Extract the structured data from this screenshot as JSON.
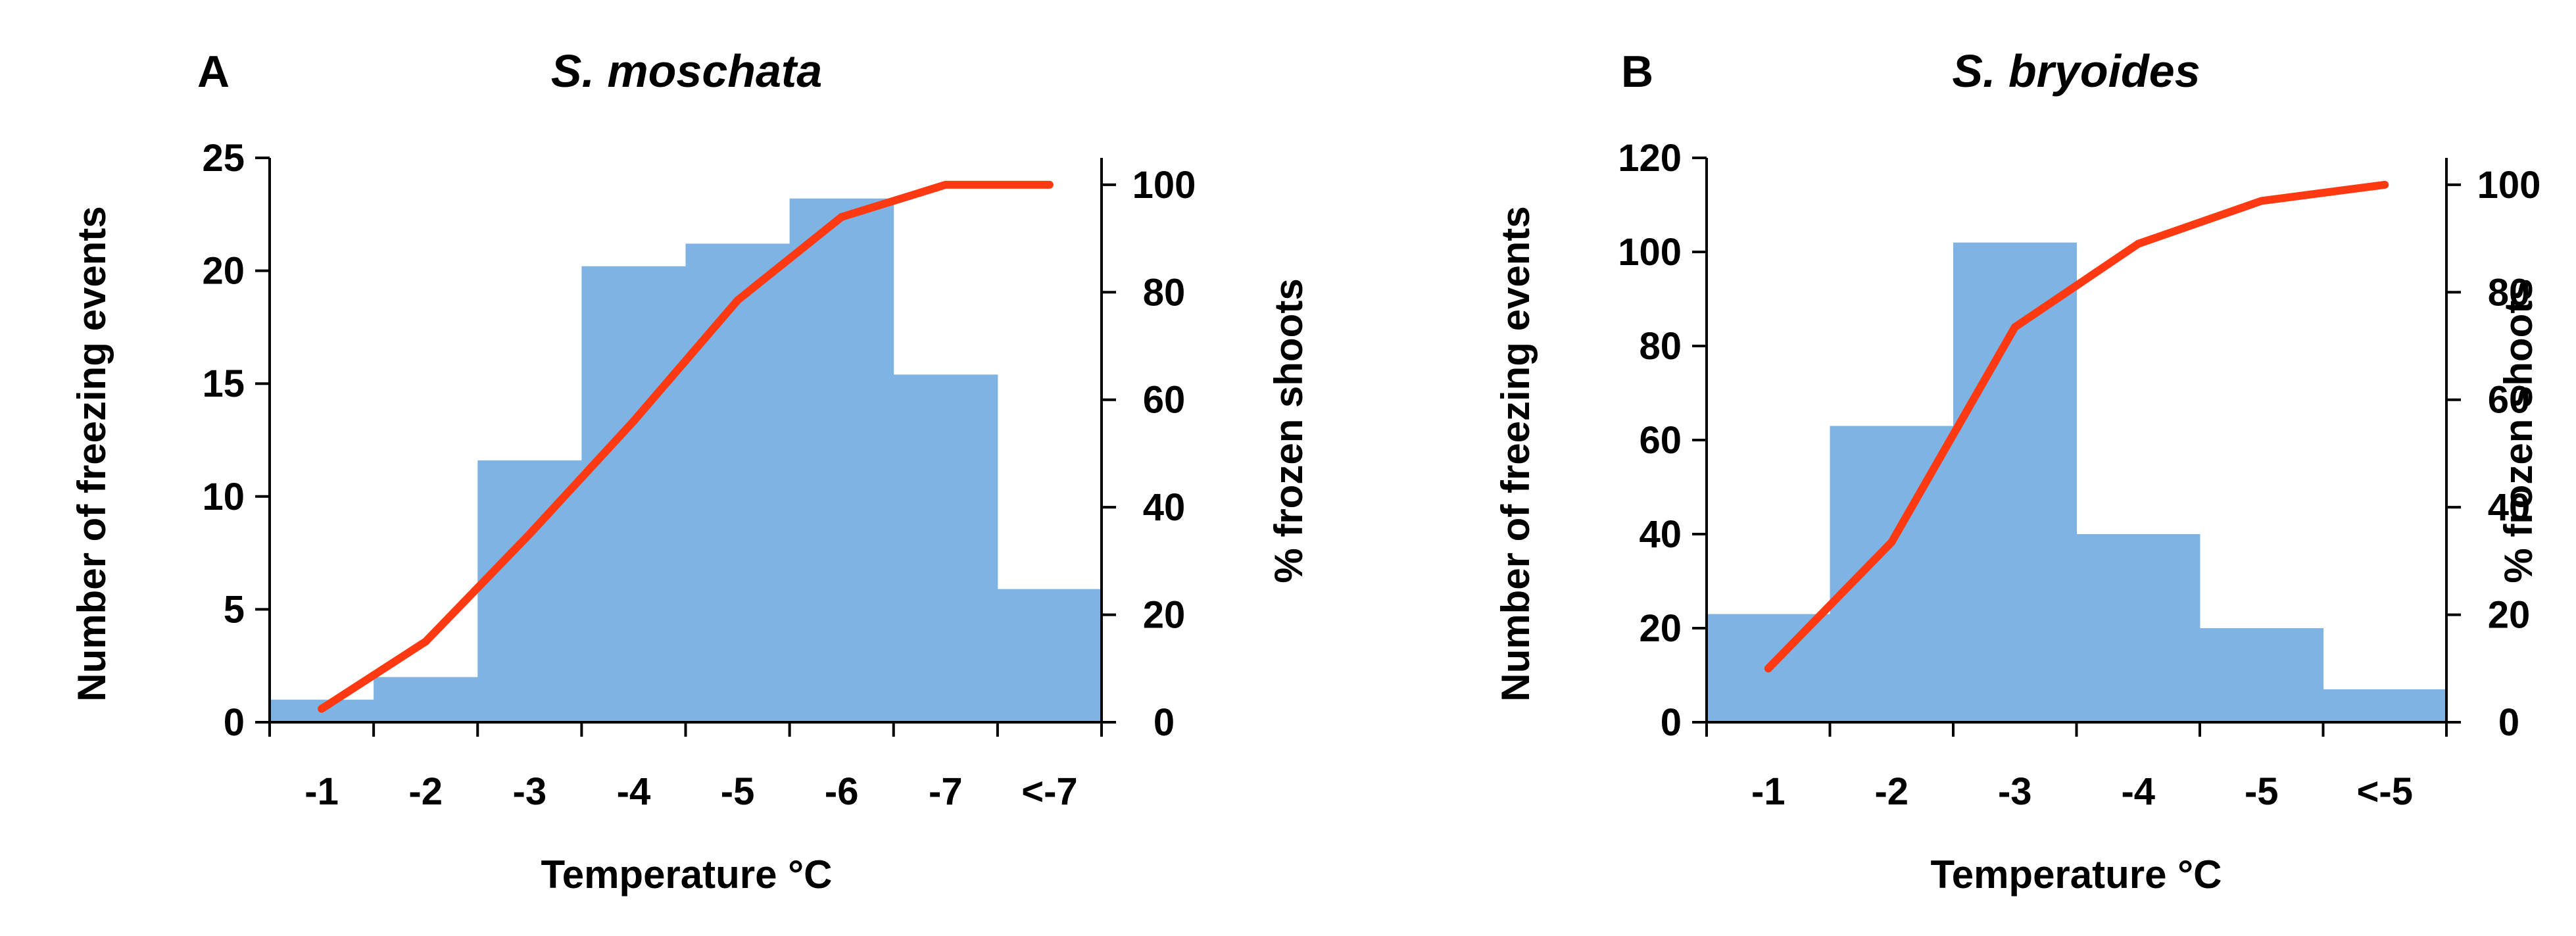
{
  "colors": {
    "bar": "#7EB3E3",
    "line": "#FF3A12",
    "axis": "#000000"
  },
  "chart_data": [
    {
      "type": "bar",
      "panel_letter": "A",
      "title": "S. moschata",
      "xlabel": "Temperature °C",
      "ylabel": "Number of freezing events",
      "ylabel_right": "% frozen shoots",
      "categories": [
        "-1",
        "-2",
        "-3",
        "-4",
        "-5",
        "-6",
        "-7",
        "<-7"
      ],
      "ylim": [
        0,
        25
      ],
      "yticks": [
        "0",
        "5",
        "10",
        "15",
        "20",
        "25"
      ],
      "ylim_right": [
        0,
        105
      ],
      "yticks_right": [
        "0",
        "20",
        "40",
        "60",
        "80",
        "100"
      ],
      "series": [
        {
          "values": [
            1,
            2,
            11.6,
            20.2,
            21.2,
            23.2,
            15.4,
            5.9
          ]
        },
        {
          "values": [
            2.5,
            15,
            35,
            56,
            78.5,
            94,
            100,
            100
          ]
        }
      ]
    },
    {
      "type": "bar",
      "panel_letter": "B",
      "title": "S. bryoides",
      "xlabel": "Temperature °C",
      "ylabel": "Number of freezing events",
      "ylabel_right": "% frozen shoots",
      "categories": [
        "-1",
        "-2",
        "-3",
        "-4",
        "-5",
        "<-5"
      ],
      "ylim": [
        0,
        120
      ],
      "yticks": [
        "0",
        "20",
        "40",
        "60",
        "80",
        "100",
        "120"
      ],
      "ylim_right": [
        0,
        105
      ],
      "yticks_right": [
        "0",
        "20",
        "40",
        "60",
        "80",
        "100"
      ],
      "series": [
        {
          "values": [
            23,
            63,
            102,
            40,
            20,
            7
          ]
        },
        {
          "values": [
            10,
            33.5,
            73.5,
            89,
            97,
            100
          ]
        }
      ]
    }
  ]
}
